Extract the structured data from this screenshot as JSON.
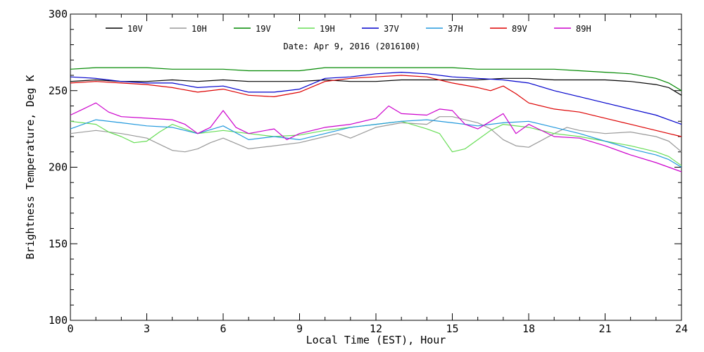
{
  "chart_data": {
    "type": "line",
    "subtitle": "Date: Apr  9, 2016 (2016100)",
    "xlabel": "Local Time (EST), Hour",
    "ylabel": "Brightness Temperature, Deg K",
    "xlim": [
      0,
      24
    ],
    "ylim": [
      100,
      300
    ],
    "x_ticks": [
      0,
      3,
      6,
      9,
      12,
      15,
      18,
      21,
      24
    ],
    "y_ticks": [
      100,
      150,
      200,
      250,
      300
    ],
    "grid": false,
    "legend_position": "top",
    "series": [
      {
        "name": "10V",
        "color": "#000000",
        "x": [
          0,
          1,
          2,
          3,
          4,
          5,
          6,
          7,
          8,
          9,
          10,
          11,
          12,
          13,
          14,
          15,
          16,
          17,
          18,
          19,
          20,
          21,
          22,
          23,
          23.5,
          24
        ],
        "y": [
          256,
          257,
          256,
          256,
          257,
          256,
          257,
          256,
          256,
          256,
          257,
          256,
          256,
          257,
          257,
          257,
          257,
          258,
          258,
          257,
          257,
          257,
          256,
          254,
          252,
          247
        ]
      },
      {
        "name": "10H",
        "color": "#999999",
        "x": [
          0,
          1,
          2,
          3,
          3.5,
          4,
          4.5,
          5,
          5.5,
          6,
          7,
          8,
          9,
          10,
          10.5,
          11,
          12,
          13,
          14,
          14.5,
          15,
          16,
          16.5,
          17,
          17.5,
          18,
          19,
          19.5,
          20,
          21,
          22,
          23,
          23.5,
          24
        ],
        "y": [
          222,
          224,
          222,
          219,
          215,
          211,
          210,
          212,
          216,
          219,
          212,
          214,
          216,
          220,
          222,
          219,
          226,
          229,
          228,
          233,
          233,
          229,
          225,
          218,
          214,
          213,
          222,
          226,
          224,
          222,
          223,
          220,
          217,
          210
        ]
      },
      {
        "name": "19V",
        "color": "#008800",
        "x": [
          0,
          1,
          2,
          3,
          4,
          5,
          6,
          7,
          8,
          9,
          10,
          11,
          12,
          13,
          14,
          15,
          16,
          17,
          18,
          19,
          20,
          21,
          22,
          23,
          23.5,
          24
        ],
        "y": [
          264,
          265,
          265,
          265,
          264,
          264,
          264,
          263,
          263,
          263,
          265,
          265,
          265,
          265,
          265,
          265,
          264,
          264,
          264,
          264,
          263,
          262,
          261,
          258,
          255,
          250
        ]
      },
      {
        "name": "19H",
        "color": "#66dd55",
        "x": [
          0,
          1,
          1.5,
          2,
          2.5,
          3,
          3.5,
          4,
          5,
          6,
          7,
          8,
          9,
          10,
          11,
          12,
          13,
          14,
          14.5,
          15,
          15.5,
          16,
          16.5,
          17,
          18,
          19,
          20,
          21,
          22,
          23,
          23.5,
          24
        ],
        "y": [
          230,
          228,
          223,
          220,
          216,
          217,
          223,
          228,
          222,
          224,
          222,
          220,
          221,
          224,
          226,
          228,
          230,
          225,
          222,
          210,
          212,
          218,
          224,
          228,
          226,
          222,
          220,
          217,
          214,
          210,
          207,
          201
        ]
      },
      {
        "name": "37V",
        "color": "#0000cc",
        "x": [
          0,
          1,
          2,
          3,
          4,
          5,
          6,
          7,
          8,
          9,
          10,
          11,
          12,
          13,
          14,
          15,
          16,
          17,
          18,
          19,
          20,
          21,
          22,
          23,
          23.5,
          24
        ],
        "y": [
          259,
          258,
          256,
          255,
          255,
          252,
          253,
          249,
          249,
          251,
          258,
          259,
          261,
          262,
          261,
          259,
          258,
          257,
          255,
          250,
          246,
          242,
          238,
          234,
          231,
          228
        ]
      },
      {
        "name": "37H",
        "color": "#2299dd",
        "x": [
          0,
          1,
          2,
          3,
          4,
          5,
          6,
          7,
          8,
          9,
          10,
          11,
          12,
          13,
          14,
          15,
          16,
          17,
          18,
          19,
          20,
          21,
          22,
          23,
          23.5,
          24
        ],
        "y": [
          225,
          231,
          229,
          227,
          226,
          222,
          227,
          218,
          220,
          218,
          222,
          226,
          228,
          230,
          231,
          229,
          227,
          229,
          230,
          226,
          222,
          217,
          212,
          208,
          205,
          200
        ]
      },
      {
        "name": "89V",
        "color": "#dd0000",
        "x": [
          0,
          1,
          2,
          3,
          4,
          5,
          6,
          7,
          8,
          9,
          10,
          11,
          12,
          13,
          14,
          15,
          16,
          16.5,
          17,
          17.5,
          18,
          19,
          20,
          21,
          22,
          23,
          23.5,
          24
        ],
        "y": [
          255,
          256,
          255,
          254,
          252,
          249,
          251,
          247,
          246,
          249,
          256,
          258,
          259,
          260,
          259,
          255,
          252,
          250,
          253,
          248,
          242,
          238,
          236,
          232,
          228,
          224,
          222,
          220
        ]
      },
      {
        "name": "89H",
        "color": "#cc00cc",
        "x": [
          0,
          0.5,
          1,
          1.5,
          2,
          3,
          4,
          4.5,
          5,
          5.5,
          6,
          6.5,
          7,
          8,
          8.5,
          9,
          10,
          11,
          12,
          12.5,
          13,
          14,
          14.5,
          15,
          15.5,
          16,
          16.5,
          17,
          17.5,
          18,
          19,
          20,
          21,
          22,
          23,
          23.5,
          24
        ],
        "y": [
          234,
          238,
          242,
          236,
          233,
          232,
          231,
          228,
          222,
          226,
          237,
          226,
          222,
          225,
          218,
          222,
          226,
          228,
          232,
          240,
          235,
          234,
          238,
          237,
          228,
          225,
          230,
          235,
          222,
          228,
          220,
          219,
          214,
          208,
          203,
          200,
          197
        ]
      }
    ]
  }
}
